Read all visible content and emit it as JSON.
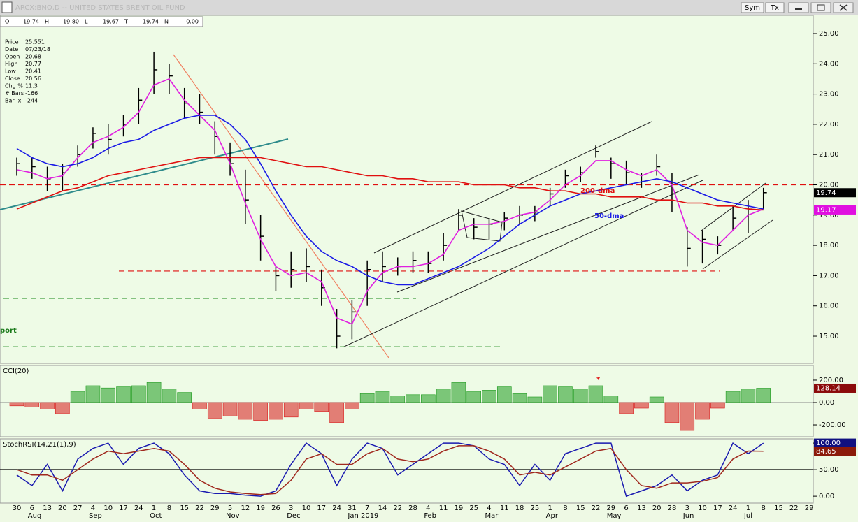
{
  "window": {
    "title": "ARCX:BNO,D -- UNITED STATES BRENT OIL FUND",
    "buttons": [
      "Sym",
      "Tx"
    ]
  },
  "quote": [
    [
      "O",
      "19.74"
    ],
    [
      "H",
      "19.80"
    ],
    [
      "L",
      "19.67"
    ],
    [
      "T",
      "19.74"
    ],
    [
      "N",
      "0.00"
    ]
  ],
  "data_window": [
    [
      "Price",
      "25.551"
    ],
    [
      "Date",
      "07/23/18"
    ],
    [
      "Open",
      "20.68"
    ],
    [
      "High",
      "20.77"
    ],
    [
      "Low",
      "20.41"
    ],
    [
      "Close",
      "20.56"
    ],
    [
      "Chg %",
      "11.3"
    ],
    [
      "# Bars",
      "-166"
    ],
    [
      "Bar Ix",
      "-244"
    ]
  ],
  "chart_data": [
    {
      "type": "ohlc",
      "categories": [
        "30",
        "6",
        "13",
        "20",
        "27",
        "4",
        "10",
        "17",
        "24",
        "1",
        "8",
        "15",
        "22",
        "29",
        "5",
        "12",
        "19",
        "26",
        "3",
        "10",
        "17",
        "24",
        "31",
        "7",
        "14",
        "22",
        "28",
        "4",
        "11",
        "19",
        "25",
        "4",
        "11",
        "18",
        "25",
        "1",
        "8",
        "15",
        "22",
        "29",
        "6",
        "13",
        "20",
        "28",
        "3",
        "10",
        "17",
        "24",
        "1",
        "8",
        "15",
        "22",
        "29"
      ],
      "month_labels": [
        null,
        "Aug",
        null,
        null,
        null,
        "Sep",
        null,
        null,
        null,
        "Oct",
        null,
        null,
        null,
        null,
        "Nov",
        null,
        null,
        null,
        "Dec",
        null,
        null,
        null,
        "Jan 2019",
        null,
        null,
        null,
        null,
        "Feb",
        null,
        null,
        null,
        "Mar",
        null,
        null,
        null,
        "Apr",
        null,
        null,
        null,
        "May",
        null,
        null,
        null,
        null,
        "Jun",
        null,
        null,
        null,
        "Jul",
        null,
        null,
        null,
        null
      ],
      "ylim": [
        14.1,
        25.6
      ],
      "yticks": [
        {
          "value": 15,
          "label": "15.00"
        },
        {
          "value": 16,
          "label": "16.00"
        },
        {
          "value": 17,
          "label": "17.00"
        },
        {
          "value": 18,
          "label": "18.00"
        },
        {
          "value": 19,
          "label": "19.00"
        },
        {
          "value": 20,
          "label": "20.00"
        },
        {
          "value": 21,
          "label": "21.00"
        },
        {
          "value": 22,
          "label": "22.00"
        },
        {
          "value": 23,
          "label": "23.00"
        },
        {
          "value": 24,
          "label": "24.00"
        },
        {
          "value": 25,
          "label": "25.00"
        }
      ],
      "bar_color": "#000000",
      "high": [
        20.9,
        20.9,
        20.6,
        20.7,
        21.3,
        21.9,
        22.0,
        22.3,
        23.2,
        24.4,
        24.0,
        23.2,
        23.0,
        22.1,
        21.4,
        20.5,
        19.0,
        17.3,
        17.8,
        17.9,
        17.2,
        15.9,
        16.2,
        17.5,
        17.8,
        17.6,
        17.8,
        17.8,
        18.4,
        19.2,
        18.9,
        18.9,
        19.1,
        19.3,
        19.3,
        19.9,
        20.5,
        20.6,
        21.3,
        20.9,
        20.8,
        20.4,
        21.0,
        20.4,
        18.6,
        18.5,
        18.3,
        19.3,
        19.5,
        19.9,
        null,
        null,
        null
      ],
      "low": [
        20.3,
        20.2,
        19.8,
        19.8,
        20.6,
        21.2,
        21.0,
        21.6,
        22.0,
        23.0,
        23.0,
        22.2,
        22.0,
        21.0,
        20.3,
        18.7,
        17.5,
        16.5,
        16.6,
        16.8,
        16.0,
        14.6,
        14.9,
        16.0,
        16.8,
        17.0,
        17.1,
        17.1,
        17.5,
        18.5,
        18.2,
        18.2,
        18.5,
        18.7,
        18.8,
        19.3,
        19.9,
        20.1,
        20.9,
        20.2,
        20.0,
        19.9,
        20.3,
        19.1,
        17.3,
        17.4,
        17.7,
        18.5,
        18.4,
        19.2,
        null,
        null,
        null
      ],
      "close": [
        20.7,
        20.6,
        20.2,
        20.4,
        21.0,
        21.7,
        21.5,
        22.0,
        22.8,
        23.8,
        23.6,
        22.7,
        22.4,
        21.6,
        20.7,
        19.5,
        18.3,
        17.0,
        17.2,
        17.3,
        16.6,
        15.0,
        15.8,
        17.2,
        17.3,
        17.3,
        17.5,
        17.4,
        18.0,
        19.0,
        18.6,
        18.7,
        18.9,
        19.0,
        19.1,
        19.7,
        20.3,
        20.4,
        21.1,
        20.7,
        20.4,
        20.1,
        20.6,
        19.7,
        17.9,
        18.2,
        18.0,
        18.9,
        19.2,
        19.74,
        null,
        null,
        null
      ],
      "lines": [
        {
          "color": "#e020e0",
          "values": [
            20.5,
            20.4,
            20.2,
            20.3,
            20.9,
            21.4,
            21.6,
            21.9,
            22.4,
            23.3,
            23.5,
            22.8,
            22.3,
            21.8,
            20.7,
            19.4,
            18.2,
            17.3,
            17.0,
            17.1,
            16.8,
            15.6,
            15.4,
            16.5,
            17.1,
            17.3,
            17.3,
            17.4,
            17.7,
            18.5,
            18.7,
            18.7,
            18.8,
            19.0,
            19.1,
            19.5,
            20.0,
            20.3,
            20.8,
            20.8,
            20.5,
            20.3,
            20.5,
            20.0,
            18.5,
            18.1,
            18.0,
            18.5,
            19.0,
            19.2,
            null,
            null,
            null
          ]
        },
        {
          "color": "#1a1ae6",
          "values": [
            21.2,
            20.9,
            20.7,
            20.6,
            20.7,
            20.9,
            21.2,
            21.4,
            21.5,
            21.8,
            22.0,
            22.2,
            22.3,
            22.3,
            22.0,
            21.5,
            20.7,
            19.8,
            19.0,
            18.3,
            17.8,
            17.5,
            17.3,
            17.0,
            16.8,
            16.7,
            16.7,
            16.9,
            17.1,
            17.3,
            17.6,
            17.9,
            18.3,
            18.7,
            19.0,
            19.3,
            19.5,
            19.7,
            19.8,
            19.9,
            20.0,
            20.1,
            20.2,
            20.1,
            19.9,
            19.7,
            19.5,
            19.4,
            19.3,
            19.2,
            null,
            null,
            null
          ]
        },
        {
          "color": "#e01010",
          "values": [
            19.2,
            19.4,
            19.6,
            19.8,
            19.9,
            20.1,
            20.3,
            20.4,
            20.5,
            20.6,
            20.7,
            20.8,
            20.9,
            20.9,
            20.9,
            20.9,
            20.9,
            20.8,
            20.7,
            20.6,
            20.6,
            20.5,
            20.4,
            20.3,
            20.3,
            20.2,
            20.2,
            20.1,
            20.1,
            20.1,
            20.0,
            20.0,
            20.0,
            19.9,
            19.9,
            19.8,
            19.8,
            19.7,
            19.7,
            19.6,
            19.6,
            19.6,
            19.5,
            19.5,
            19.4,
            19.4,
            19.3,
            19.3,
            19.2,
            19.17,
            null,
            null,
            null
          ]
        }
      ],
      "levels": [
        {
          "value": 20.0,
          "color": "#e01010"
        },
        {
          "value": 17.15,
          "color": "#e01010"
        },
        {
          "value": 16.25,
          "color": "#1a8a1a"
        },
        {
          "value": 14.65,
          "color": "#1a8a1a"
        }
      ],
      "last_labels": [
        {
          "value": 19.74,
          "label": "19.74",
          "color": "#000000"
        },
        {
          "value": 19.17,
          "label": "19.17",
          "color": "#e010e0"
        }
      ],
      "annotations": [
        "200-dma",
        "50-dma",
        "port"
      ]
    },
    {
      "type": "bar",
      "title": "CCI(20)",
      "ylim": [
        -306,
        331
      ],
      "yticks": [
        {
          "value": 200,
          "label": "200.00"
        },
        {
          "value": 0,
          "label": "0.00"
        },
        {
          "value": -200,
          "label": "-200.00"
        }
      ],
      "positive_color": "#1e9a1e",
      "negative_color": "#d81818",
      "values": [
        -30,
        -40,
        -60,
        -100,
        100,
        150,
        130,
        140,
        150,
        180,
        120,
        90,
        -60,
        -140,
        -120,
        -150,
        -160,
        -150,
        -130,
        -60,
        -80,
        -180,
        -60,
        80,
        100,
        60,
        70,
        70,
        120,
        180,
        100,
        110,
        140,
        80,
        50,
        150,
        140,
        120,
        150,
        60,
        -100,
        -50,
        50,
        -180,
        -250,
        -150,
        -50,
        100,
        120,
        128.14,
        null,
        null,
        null
      ],
      "last_labels": [
        {
          "value": 128.14,
          "label": "128.14",
          "color": "#8b0a0a"
        }
      ],
      "annotations": [
        "*"
      ]
    },
    {
      "type": "line",
      "title": "StochRSI(14,21(1),9)",
      "ylim": [
        -13,
        108
      ],
      "yticks": [
        {
          "value": 0,
          "label": "0.00"
        },
        {
          "value": 50,
          "label": "50.00"
        },
        {
          "value": 100,
          "label": "100.00"
        }
      ],
      "lines": [
        {
          "color": "#1a1ab0",
          "values": [
            40,
            20,
            60,
            10,
            70,
            90,
            100,
            60,
            90,
            100,
            80,
            40,
            10,
            5,
            5,
            2,
            0,
            10,
            60,
            100,
            80,
            20,
            70,
            100,
            90,
            40,
            60,
            80,
            100,
            100,
            95,
            70,
            60,
            20,
            60,
            30,
            80,
            90,
            100,
            100,
            0,
            10,
            20,
            40,
            10,
            30,
            40,
            100,
            80,
            100,
            null,
            null,
            null
          ]
        },
        {
          "color": "#a0281e",
          "values": [
            50,
            40,
            40,
            30,
            50,
            70,
            85,
            80,
            85,
            90,
            85,
            60,
            30,
            15,
            8,
            5,
            3,
            5,
            30,
            70,
            80,
            60,
            60,
            80,
            90,
            70,
            65,
            70,
            85,
            95,
            95,
            85,
            70,
            40,
            45,
            40,
            55,
            70,
            85,
            90,
            50,
            20,
            15,
            25,
            25,
            28,
            35,
            70,
            85,
            84.65,
            null,
            null,
            null
          ]
        }
      ],
      "levels": [
        {
          "value": 50,
          "color": "#000000"
        }
      ],
      "last_labels": [
        {
          "value": 100,
          "label": "100.00",
          "color": "#101080"
        },
        {
          "value": 84.65,
          "label": "84.65",
          "color": "#8b1a0a"
        }
      ]
    }
  ]
}
